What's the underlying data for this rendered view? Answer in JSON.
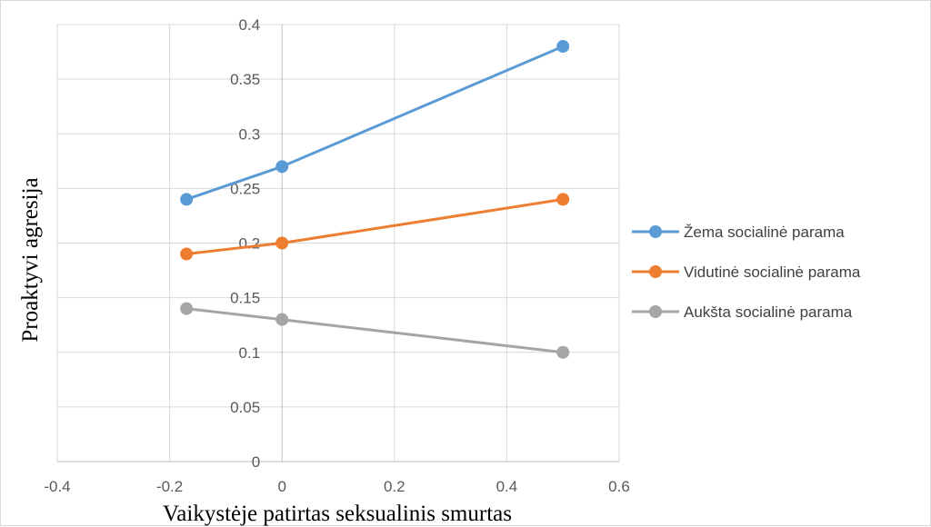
{
  "chart_data": {
    "type": "scatter",
    "title": "",
    "xlabel": "Vaikystėje patirtas seksualinis smurtas",
    "ylabel": "Proaktyvi agresija",
    "xlim": [
      -0.4,
      0.6
    ],
    "ylim": [
      0,
      0.4
    ],
    "x_ticks": [
      "-0.4",
      "-0.2",
      "0",
      "0.2",
      "0.4",
      "0.6"
    ],
    "y_ticks": [
      "0",
      "0.05",
      "0.1",
      "0.15",
      "0.2",
      "0.25",
      "0.3",
      "0.35",
      "0.4"
    ],
    "grid": true,
    "legend_position": "right",
    "series": [
      {
        "name": "Žema socialinė parama",
        "color": "#5b9bd5",
        "points": [
          [
            -0.17,
            0.24
          ],
          [
            0,
            0.27
          ],
          [
            0.5,
            0.38
          ]
        ]
      },
      {
        "name": "Vidutinė socialinė parama",
        "color": "#ed7d31",
        "points": [
          [
            -0.17,
            0.19
          ],
          [
            0,
            0.2
          ],
          [
            0.5,
            0.24
          ]
        ]
      },
      {
        "name": "Aukšta socialinė parama",
        "color": "#a5a5a5",
        "points": [
          [
            -0.17,
            0.14
          ],
          [
            0,
            0.13
          ],
          [
            0.5,
            0.1
          ]
        ]
      }
    ]
  }
}
